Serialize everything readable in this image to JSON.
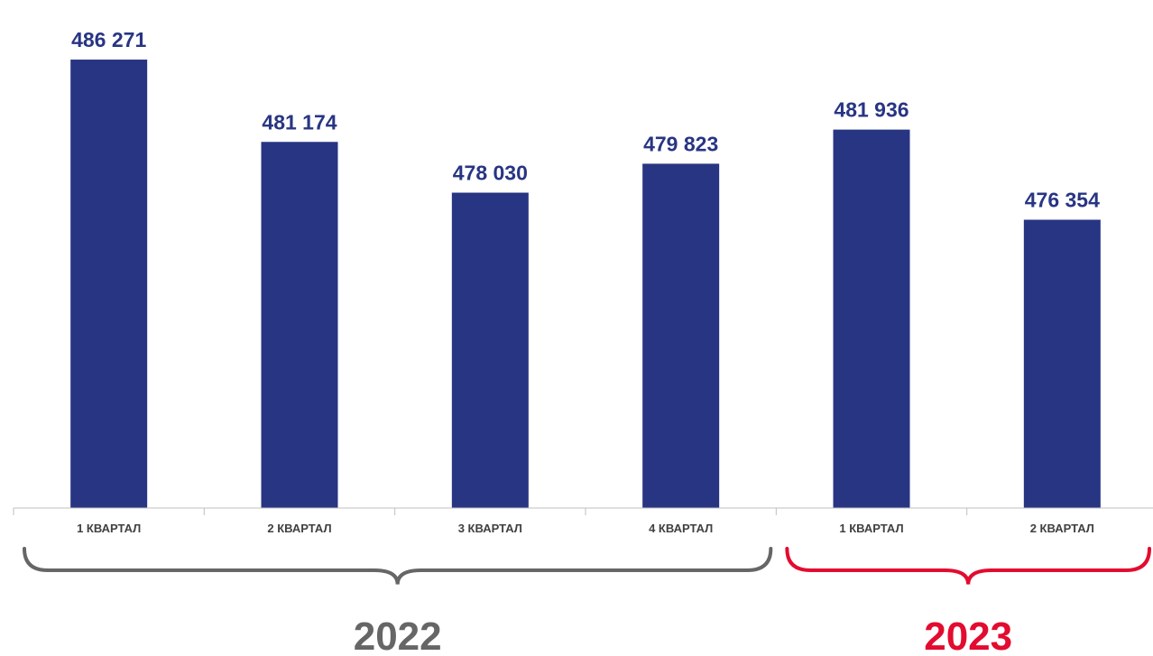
{
  "chart_data": {
    "type": "bar",
    "categories": [
      "1 КВАРТАЛ",
      "2 КВАРТАЛ",
      "3 КВАРТАЛ",
      "4 КВАРТАЛ",
      "1 КВАРТАЛ",
      "2 КВАРТАЛ"
    ],
    "values": [
      486271,
      481174,
      478030,
      479823,
      481936,
      476354
    ],
    "value_labels": [
      "486 271",
      "481 174",
      "478 030",
      "479 823",
      "481 936",
      "476 354"
    ],
    "ylim": [
      458500,
      487000
    ],
    "grid": false,
    "legend": "none",
    "groups": [
      {
        "label": "2022",
        "first": 0,
        "last": 3
      },
      {
        "label": "2023",
        "first": 4,
        "last": 5
      }
    ]
  },
  "colors": {
    "bar": "#283583",
    "value_label": "#283583",
    "tick_label": "#404040",
    "axis": "#bfbfbf",
    "group_2022": "#666666",
    "group_2023": "#e30b2f"
  }
}
